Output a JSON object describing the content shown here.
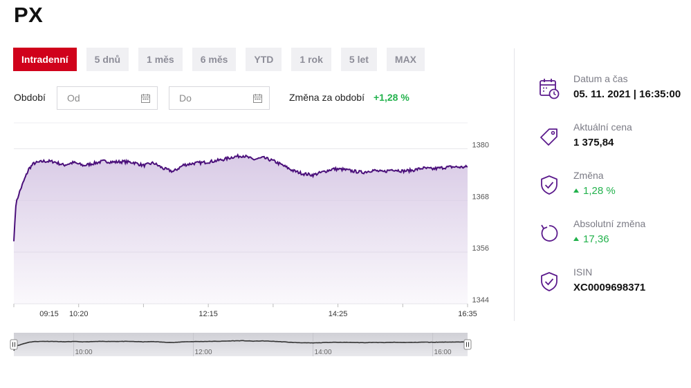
{
  "title": "PX",
  "ranges": [
    {
      "label": "Intradenní",
      "active": true
    },
    {
      "label": "5 dnů",
      "active": false
    },
    {
      "label": "1 měs",
      "active": false
    },
    {
      "label": "6 měs",
      "active": false
    },
    {
      "label": "YTD",
      "active": false
    },
    {
      "label": "1 rok",
      "active": false
    },
    {
      "label": "5 let",
      "active": false
    },
    {
      "label": "MAX",
      "active": false
    }
  ],
  "period": {
    "label": "Období",
    "from_placeholder": "Od",
    "to_placeholder": "Do",
    "change_label": "Změna za období",
    "change_value": "+1,28 %"
  },
  "info": {
    "datetime": {
      "label": "Datum a čas",
      "value": "05. 11. 2021 | 16:35:00",
      "icon": "calendar-clock-icon"
    },
    "price": {
      "label": "Aktuální cena",
      "value": "1 375,84",
      "icon": "price-tag-icon"
    },
    "change": {
      "label": "Změna",
      "value": "1,28 %",
      "icon": "shield-check-icon"
    },
    "abs_change": {
      "label": "Absolutní změna",
      "value": "17,36",
      "icon": "refresh-icon"
    },
    "isin": {
      "label": "ISIN",
      "value": "XC0009698371",
      "icon": "shield-check-icon"
    }
  },
  "colors": {
    "accent": "#d0021b",
    "line": "#4a0f7a",
    "fill": "#d9cbe6",
    "positive": "#22b24c",
    "icon": "#5b1a8c"
  },
  "chart_data": {
    "type": "area",
    "title": "",
    "xlabel": "",
    "ylabel": "",
    "x_range": [
      "09:00",
      "16:35"
    ],
    "ylim": [
      1344,
      1386
    ],
    "y_ticks": [
      1344,
      1356,
      1368,
      1380
    ],
    "y_tick_labels": [
      "1344",
      "1356",
      "1368",
      "1380"
    ],
    "x_ticks": [
      "09:00",
      "10:05",
      "11:10",
      "12:15",
      "13:20",
      "14:25",
      "15:30",
      "16:35"
    ],
    "x_tick_labels": [
      "",
      "10:20",
      "",
      "12:15",
      "",
      "14:25",
      "",
      "16:35"
    ],
    "x_tick_label_first": "09:15",
    "grid": true,
    "series": [
      {
        "x": [
          "09:00",
          "09:02",
          "09:05",
          "09:10",
          "09:15",
          "09:20",
          "09:30",
          "09:40",
          "09:50",
          "10:00",
          "10:10",
          "10:20",
          "10:30",
          "10:40",
          "10:50",
          "11:00",
          "11:10",
          "11:20",
          "11:30",
          "11:40",
          "11:50",
          "12:00",
          "12:10",
          "12:20",
          "12:30",
          "12:40",
          "12:50",
          "13:00",
          "13:10",
          "13:20",
          "13:30",
          "13:40",
          "13:50",
          "14:00",
          "14:10",
          "14:20",
          "14:30",
          "14:40",
          "14:50",
          "15:00",
          "15:10",
          "15:20",
          "15:30",
          "15:40",
          "15:50",
          "16:00",
          "16:10",
          "16:20",
          "16:30",
          "16:35"
        ],
        "values": [
          1358.5,
          1367.0,
          1369.5,
          1372.5,
          1375.3,
          1376.6,
          1377.1,
          1377.0,
          1376.2,
          1376.8,
          1376.1,
          1376.6,
          1377.1,
          1376.9,
          1377.0,
          1376.8,
          1376.1,
          1376.7,
          1375.4,
          1374.7,
          1376.2,
          1376.6,
          1376.8,
          1377.1,
          1377.5,
          1378.1,
          1378.4,
          1377.5,
          1377.9,
          1377.2,
          1376.1,
          1374.9,
          1374.2,
          1373.9,
          1374.6,
          1375.3,
          1375.2,
          1374.8,
          1374.5,
          1375.0,
          1374.6,
          1375.2,
          1374.8,
          1375.0,
          1375.5,
          1375.3,
          1375.6,
          1375.8,
          1375.7,
          1375.8
        ]
      }
    ],
    "navigator": {
      "tick_labels": [
        "10:00",
        "12:00",
        "14:00",
        "16:00"
      ]
    }
  }
}
